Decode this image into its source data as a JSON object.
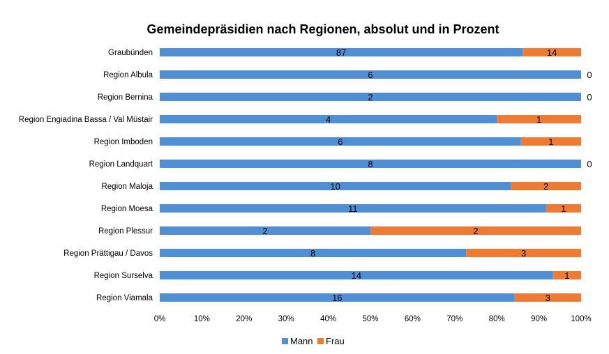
{
  "chart_data": {
    "type": "bar",
    "orientation": "horizontal",
    "stacked": "percent",
    "title": "Gemeindepräsidien nach Regionen, absolut und in Prozent",
    "categories": [
      "Graubünden",
      "Region Albula",
      "Region Bernina",
      "Region Engiadina Bassa / Val Müstair",
      "Region Imboden",
      "Region Landquart",
      "Region Maloja",
      "Region Moesa",
      "Region Plessur",
      "Region Prättigau / Davos",
      "Region Surselva",
      "Region Viamala"
    ],
    "series": [
      {
        "name": "Mann",
        "color": "#4f8fd6",
        "values": [
          87,
          6,
          2,
          4,
          6,
          8,
          10,
          11,
          2,
          8,
          14,
          16
        ]
      },
      {
        "name": "Frau",
        "color": "#ee7a33",
        "values": [
          14,
          0,
          0,
          1,
          1,
          0,
          2,
          1,
          2,
          3,
          1,
          3
        ]
      }
    ],
    "x_ticks": [
      "0%",
      "10%",
      "20%",
      "30%",
      "40%",
      "50%",
      "60%",
      "70%",
      "80%",
      "90%",
      "100%"
    ],
    "xlim": [
      0,
      100
    ],
    "grid": false,
    "legend": "bottom"
  }
}
